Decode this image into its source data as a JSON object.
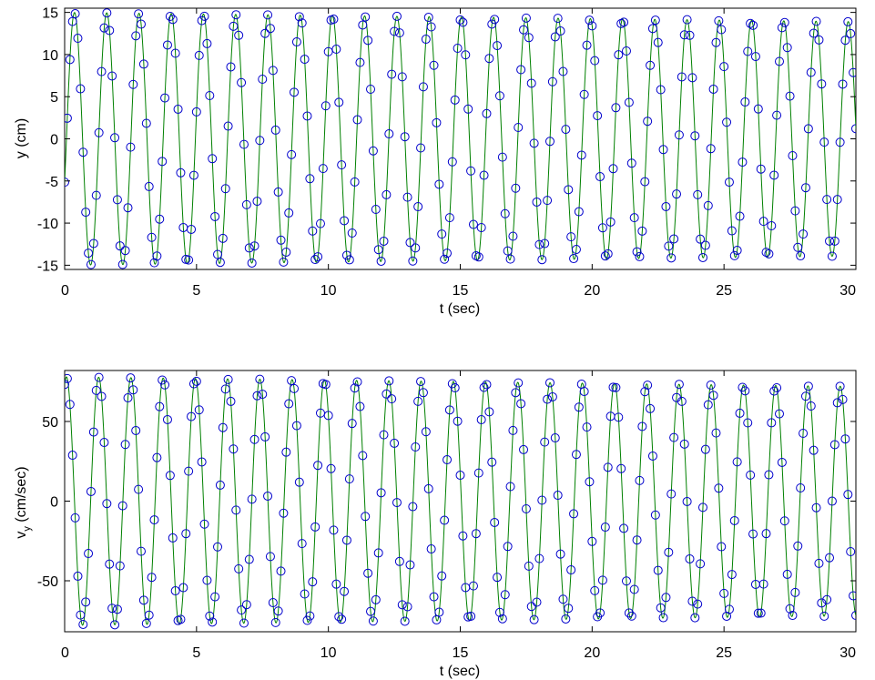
{
  "chart_data": [
    {
      "type": "line",
      "xlabel": "t (sec)",
      "ylabel": "y (cm)",
      "xlim": [
        0,
        30
      ],
      "ylim": [
        -15.5,
        15.5
      ],
      "xticks": [
        0,
        5,
        10,
        15,
        20,
        25,
        30
      ],
      "yticks": [
        -15,
        -10,
        -5,
        0,
        5,
        10,
        15
      ],
      "xtick_labels": [
        "0",
        "5",
        "10",
        "15",
        "20",
        "25",
        "30"
      ],
      "ytick_labels": [
        "-15",
        "-10",
        "-5",
        "0",
        "5",
        "10",
        "15"
      ],
      "grid": false,
      "series": [
        {
          "style": "line",
          "color": "#008000",
          "description": "fit curve",
          "amplitude": [
            15.0,
            13.9
          ],
          "period": 1.2224,
          "phase": -0.35,
          "offset": 0,
          "x_range": [
            0,
            30
          ]
        },
        {
          "style": "markers",
          "marker": "open circle",
          "color": "#0000cc",
          "amplitude": [
            15.0,
            13.9
          ],
          "period": 1.2224,
          "phase": -0.35,
          "offset": 0,
          "sample_step": 0.1,
          "x_range": [
            0,
            30
          ]
        }
      ]
    },
    {
      "type": "line",
      "xlabel": "t (sec)",
      "ylabel": "v",
      "ylabel_subscript": "y",
      "ylabel_suffix": " (cm/sec)",
      "xlim": [
        0,
        30
      ],
      "ylim": [
        -82,
        82
      ],
      "xticks": [
        0,
        5,
        10,
        15,
        20,
        25,
        30
      ],
      "yticks": [
        -50,
        0,
        50
      ],
      "xtick_labels": [
        "0",
        "5",
        "10",
        "15",
        "20",
        "25",
        "30"
      ],
      "ytick_labels": [
        "-50",
        "0",
        "50"
      ],
      "grid": false,
      "series": [
        {
          "style": "line",
          "color": "#008000",
          "description": "fit curve",
          "amplitude": [
            78.0,
            72.0
          ],
          "period": 1.2224,
          "phase": 1.2208,
          "offset": 0,
          "x_range": [
            0,
            30
          ]
        },
        {
          "style": "markers",
          "marker": "open circle",
          "color": "#0000cc",
          "amplitude": [
            78.0,
            72.0
          ],
          "period": 1.2224,
          "phase": 1.2208,
          "offset": 0,
          "sample_step": 0.1,
          "x_range": [
            0,
            30
          ]
        }
      ]
    }
  ]
}
